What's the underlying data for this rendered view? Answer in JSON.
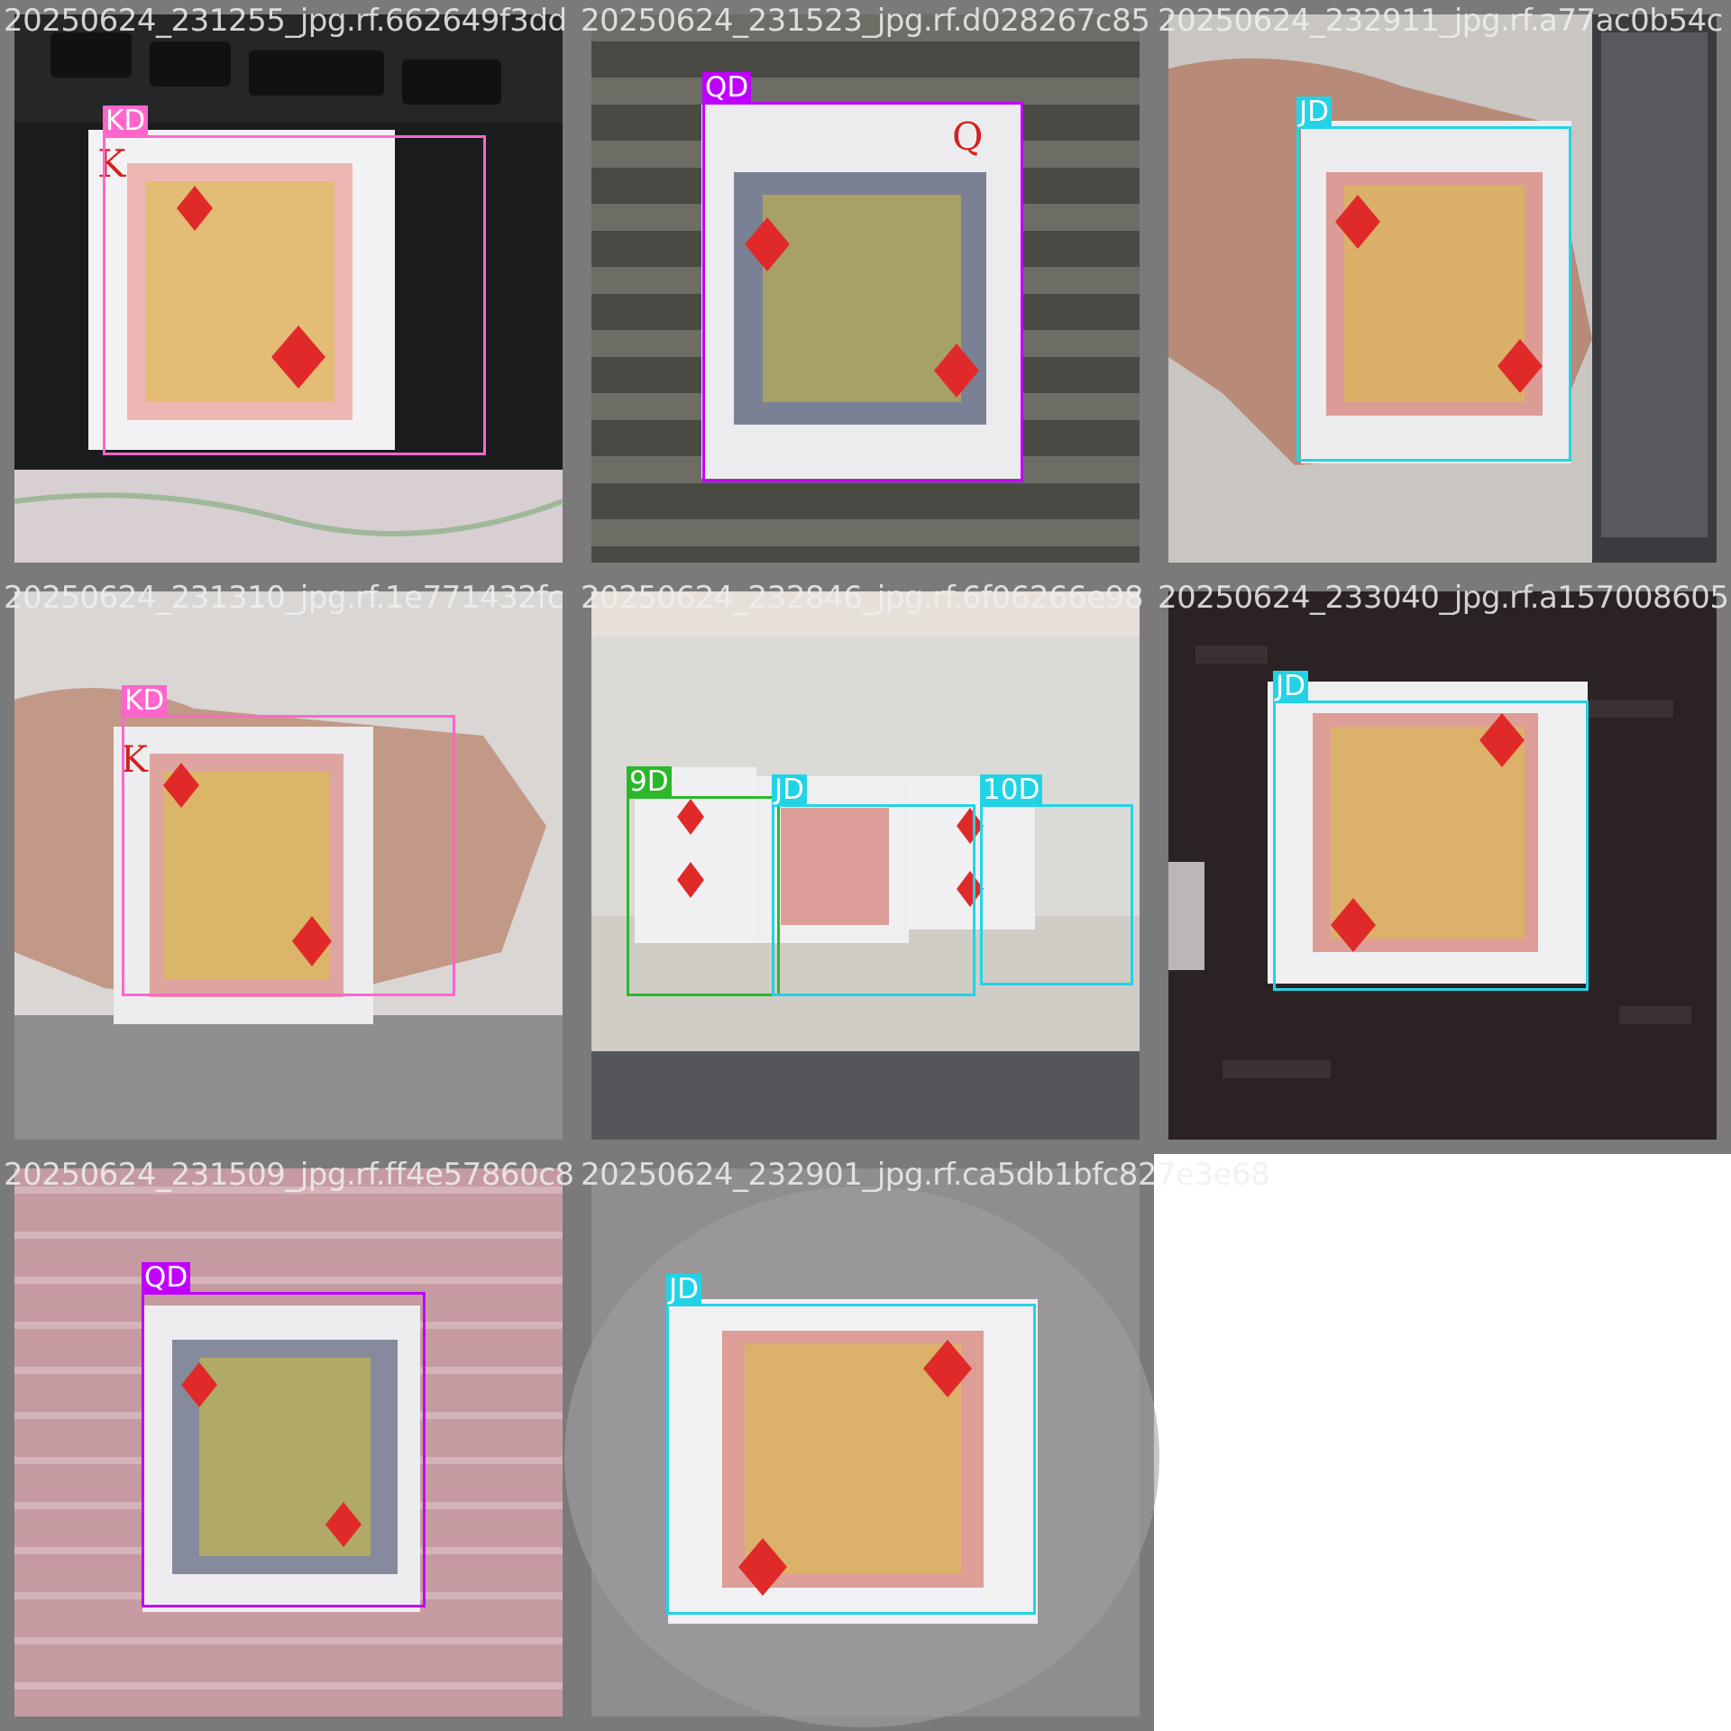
{
  "colors": {
    "KD": "#ff66cc",
    "QD": "#c000ff",
    "JD": "#22d3e6",
    "9D": "#2ab82a",
    "10D": "#22d3e6"
  },
  "tiles": [
    {
      "filename": "20250624_231255_jpg.rf.662649f3dd",
      "detections": [
        {
          "label": "KD"
        }
      ]
    },
    {
      "filename": "20250624_231523_jpg.rf.d028267c85",
      "detections": [
        {
          "label": "QD"
        }
      ]
    },
    {
      "filename": "20250624_232911_jpg.rf.a77ac0b54c",
      "detections": [
        {
          "label": "JD"
        }
      ]
    },
    {
      "filename": "20250624_231310_jpg.rf.1e771432fc",
      "detections": [
        {
          "label": "KD"
        }
      ]
    },
    {
      "filename": "20250624_232846_jpg.rf.6f06266e98",
      "detections": [
        {
          "label": "9D"
        },
        {
          "label": "JD"
        },
        {
          "label": "10D"
        }
      ]
    },
    {
      "filename": "20250624_233040_jpg.rf.a157008605",
      "detections": [
        {
          "label": "JD"
        }
      ]
    },
    {
      "filename": "20250624_231509_jpg.rf.ff4e57860c8",
      "detections": [
        {
          "label": "QD"
        }
      ]
    },
    {
      "filename": "20250624_232901_jpg.rf.ca5db1bfc827e3e68",
      "detections": [
        {
          "label": "JD"
        }
      ]
    }
  ]
}
